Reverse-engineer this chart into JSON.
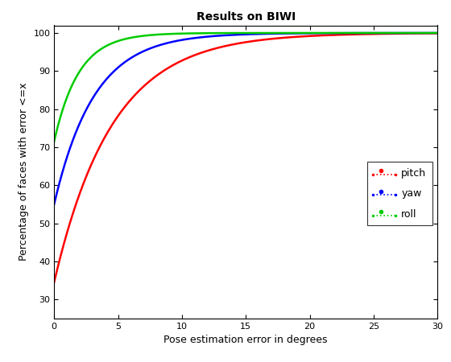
{
  "title": "Results on BIWI",
  "xlabel": "Pose estimation error in degrees",
  "ylabel": "Percentage of faces with error <=x",
  "xlim": [
    0,
    30
  ],
  "ylim": [
    25,
    102
  ],
  "yticks": [
    30,
    40,
    50,
    60,
    70,
    80,
    90,
    100
  ],
  "xticks": [
    0,
    5,
    10,
    15,
    20,
    25,
    30
  ],
  "pitch_color": "#ff0000",
  "yaw_color": "#0000ff",
  "roll_color": "#00cc00",
  "pitch_y0": 34.5,
  "yaw_y0": 55.0,
  "roll_y0": 71.5,
  "pitch_rate": 0.22,
  "yaw_rate": 0.32,
  "roll_rate": 0.52,
  "linewidth": 1.8
}
